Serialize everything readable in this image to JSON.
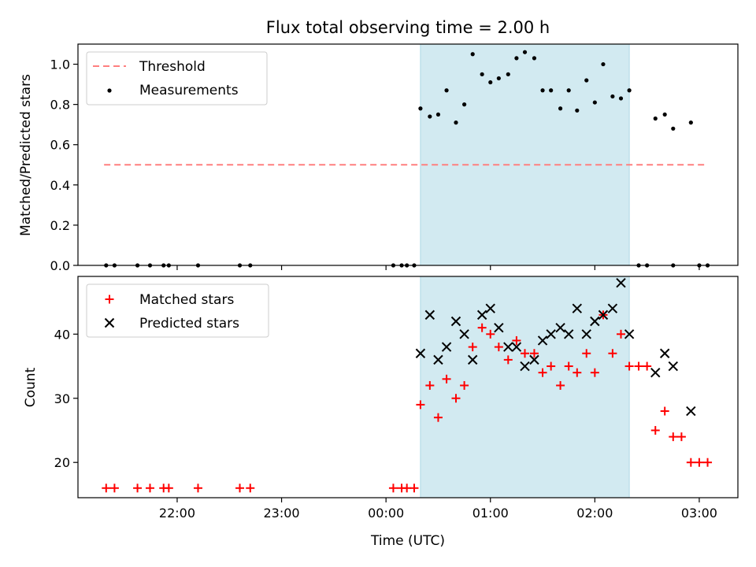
{
  "figure": {
    "title": "Flux total observing time = 2.00 h",
    "xlabel": "Time (UTC)",
    "x_ticks": [
      "22:00",
      "23:00",
      "00:00",
      "01:00",
      "02:00",
      "03:00"
    ],
    "x_tick_hours": [
      22,
      23,
      24,
      25,
      26,
      27
    ],
    "x_range_hours": [
      21.05,
      27.37
    ],
    "shaded_interval_hours": [
      24.33,
      26.33
    ],
    "colors": {
      "shade": "#add8e6",
      "threshold": "#ff7f7f",
      "measurement": "#000000",
      "matched": "#ff0000",
      "predicted": "#000000"
    }
  },
  "chart_data": [
    {
      "type": "scatter",
      "ylabel": "Matched/Predicted stars",
      "ylim": [
        0,
        1.1
      ],
      "y_ticks": [
        "0.0",
        "0.2",
        "0.4",
        "0.6",
        "0.8",
        "1.0"
      ],
      "y_tick_values": [
        0,
        0.2,
        0.4,
        0.6,
        0.8,
        1.0
      ],
      "legend": {
        "position": "upper-left",
        "threshold_label": "Threshold",
        "measurements_label": "Measurements"
      },
      "threshold": {
        "value": 0.5,
        "x_range_hours": [
          21.3,
          27.05
        ]
      },
      "measurements": {
        "x_hours": [
          21.32,
          21.4,
          21.62,
          21.74,
          21.87,
          21.92,
          22.2,
          22.6,
          22.7,
          24.07,
          24.15,
          24.2,
          24.27,
          24.33,
          24.42,
          24.5,
          24.58,
          24.67,
          24.75,
          24.83,
          24.92,
          25.0,
          25.08,
          25.17,
          25.25,
          25.33,
          25.42,
          25.5,
          25.58,
          25.67,
          25.75,
          25.83,
          25.92,
          26.0,
          26.08,
          26.17,
          26.25,
          26.33,
          26.42,
          26.5,
          26.58,
          26.67,
          26.75,
          26.92,
          26.75,
          27.08,
          27.0
        ],
        "y": [
          0,
          0,
          0,
          0,
          0,
          0,
          0,
          0,
          0,
          0,
          0,
          0,
          0,
          0.78,
          0.74,
          0.75,
          0.87,
          0.71,
          0.8,
          1.05,
          0.95,
          0.91,
          0.93,
          0.95,
          1.03,
          1.06,
          1.03,
          0.87,
          0.87,
          0.78,
          0.87,
          0.77,
          0.92,
          0.81,
          1.0,
          0.84,
          0.83,
          0.87,
          0,
          0,
          0.73,
          0.75,
          0.68,
          0.71,
          0,
          0,
          0
        ]
      }
    },
    {
      "type": "scatter",
      "ylabel": "Count",
      "ylim": [
        14.5,
        49
      ],
      "y_ticks": [
        "20",
        "30",
        "40"
      ],
      "y_tick_values": [
        20,
        30,
        40
      ],
      "legend": {
        "position": "upper-left"
      },
      "series": [
        {
          "name": "Matched stars",
          "marker": "plus",
          "x_hours": [
            21.32,
            21.4,
            21.62,
            21.74,
            21.87,
            21.92,
            22.2,
            22.6,
            22.7,
            24.07,
            24.15,
            24.2,
            24.27,
            24.33,
            24.42,
            24.5,
            24.58,
            24.67,
            24.75,
            24.83,
            24.92,
            25.0,
            25.08,
            25.17,
            25.25,
            25.33,
            25.42,
            25.5,
            25.58,
            25.67,
            25.75,
            25.83,
            25.92,
            26.0,
            26.08,
            26.17,
            26.25,
            26.33,
            26.42,
            26.5,
            26.58,
            26.67,
            26.75,
            26.83,
            26.92,
            27.0,
            27.08
          ],
          "values": [
            16,
            16,
            16,
            16,
            16,
            16,
            16,
            16,
            16,
            16,
            16,
            16,
            16,
            29,
            32,
            27,
            33,
            30,
            32,
            38,
            41,
            40,
            38,
            36,
            39,
            37,
            37,
            34,
            35,
            32,
            35,
            34,
            37,
            34,
            43,
            37,
            40,
            35,
            35,
            35,
            25,
            28,
            24,
            24,
            20,
            20,
            20
          ]
        },
        {
          "name": "Predicted stars",
          "marker": "x",
          "x_hours": [
            24.33,
            24.42,
            24.5,
            24.58,
            24.67,
            24.75,
            24.83,
            24.92,
            25.0,
            25.08,
            25.17,
            25.25,
            25.33,
            25.42,
            25.5,
            25.58,
            25.67,
            25.75,
            25.83,
            25.92,
            26.0,
            26.08,
            26.17,
            26.25,
            26.33,
            26.58,
            26.67,
            26.75,
            26.92
          ],
          "values": [
            37,
            43,
            36,
            38,
            42,
            40,
            36,
            43,
            44,
            41,
            38,
            38,
            35,
            36,
            39,
            40,
            41,
            40,
            44,
            40,
            42,
            43,
            44,
            48,
            40,
            34,
            37,
            35,
            28
          ]
        }
      ]
    }
  ]
}
